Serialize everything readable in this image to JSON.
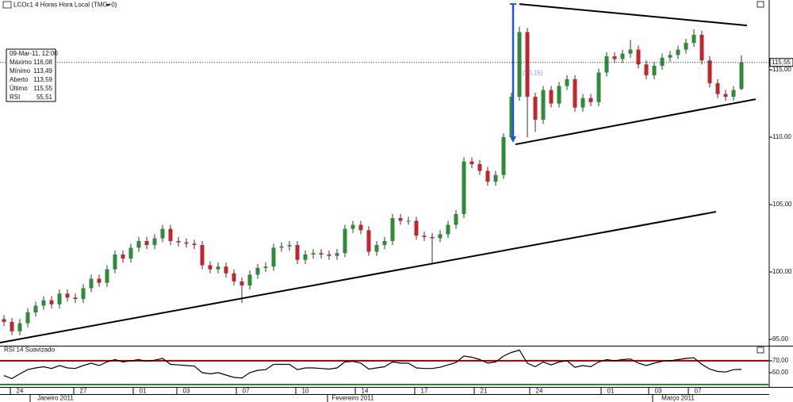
{
  "header": {
    "title": "LCOc1 4 Horas Hora Local (TMG+0)"
  },
  "info_box": {
    "date": "09-Mar-11, 12:00",
    "rows": [
      [
        "Máximo",
        "116,08"
      ],
      [
        "Mínimo",
        "113,49"
      ],
      [
        "Aberto",
        "113,59"
      ],
      [
        "Último",
        "115,55"
      ],
      [
        "RSI",
        "55,51"
      ]
    ]
  },
  "chart_data": [
    {
      "type": "candlestick",
      "up_color": "#2e8b3a",
      "down_color": "#c0262b",
      "open": [
        96.5,
        96.3,
        95.6,
        96.2,
        97.0,
        97.5,
        97.9,
        97.6,
        98.4,
        98.1,
        98.0,
        98.8,
        99.5,
        99.2,
        100.2,
        101.3,
        101.0,
        101.8,
        102.3,
        102.0,
        102.5,
        103.2,
        102.3,
        102.2,
        102.1,
        102.0,
        100.5,
        100.2,
        100.4,
        99.9,
        99.3,
        99.0,
        99.8,
        100.3,
        100.4,
        101.8,
        101.9,
        102.0,
        100.9,
        101.3,
        101.4,
        101.3,
        101.2,
        101.4,
        103.2,
        103.5,
        103.1,
        101.5,
        102.0,
        102.3,
        104.0,
        103.8,
        103.8,
        102.7,
        102.6,
        102.5,
        102.8,
        103.5,
        104.3,
        108.2,
        108.0,
        107.5,
        106.7,
        107.2,
        110.0,
        113.0,
        117.8,
        113.0,
        111.3,
        113.5,
        112.5,
        113.8,
        114.3,
        112.2,
        112.9,
        112.6,
        114.8,
        116.0,
        115.8,
        116.2,
        116.5,
        115.4,
        114.6,
        115.3,
        115.9,
        116.1,
        116.5,
        117.0,
        117.6,
        115.7,
        114.0,
        113.2,
        113.0,
        113.59
      ],
      "high": [
        96.8,
        96.6,
        96.5,
        97.3,
        97.8,
        98.2,
        98.2,
        98.7,
        98.7,
        98.4,
        99.1,
        99.8,
        99.8,
        100.5,
        101.6,
        101.6,
        102.1,
        102.6,
        102.6,
        102.8,
        103.5,
        103.5,
        102.6,
        102.5,
        102.4,
        102.3,
        100.8,
        100.7,
        100.7,
        100.2,
        99.6,
        100.1,
        100.6,
        100.7,
        102.1,
        102.2,
        102.3,
        102.3,
        101.6,
        101.7,
        101.7,
        101.6,
        101.7,
        103.5,
        103.8,
        103.8,
        103.4,
        102.3,
        102.6,
        104.3,
        104.3,
        104.1,
        104.1,
        103.0,
        102.9,
        103.1,
        103.8,
        104.6,
        108.5,
        108.5,
        108.3,
        107.8,
        107.5,
        110.3,
        113.3,
        118.2,
        118.1,
        113.3,
        113.8,
        113.8,
        114.1,
        114.6,
        114.6,
        113.2,
        113.2,
        115.1,
        116.3,
        116.3,
        116.5,
        117.2,
        116.8,
        115.7,
        115.6,
        116.2,
        116.4,
        116.8,
        117.3,
        118.0,
        117.9,
        116.0,
        114.3,
        113.5,
        113.8,
        116.08
      ],
      "low": [
        96.0,
        95.3,
        95.3,
        95.9,
        96.7,
        97.2,
        97.3,
        97.3,
        97.8,
        97.7,
        97.7,
        98.5,
        98.9,
        98.9,
        99.9,
        100.7,
        100.7,
        101.5,
        101.7,
        101.7,
        102.2,
        102.0,
        101.9,
        101.8,
        101.7,
        100.2,
        99.9,
        99.9,
        99.6,
        99.0,
        97.7,
        98.7,
        99.5,
        100.0,
        100.1,
        101.5,
        101.6,
        100.6,
        100.6,
        101.0,
        101.0,
        100.9,
        100.9,
        101.1,
        102.9,
        102.8,
        101.2,
        101.2,
        101.7,
        102.0,
        103.5,
        103.5,
        102.4,
        102.3,
        100.7,
        102.2,
        102.5,
        103.2,
        104.0,
        107.7,
        107.2,
        106.4,
        106.4,
        106.9,
        109.8,
        112.7,
        110.0,
        110.4,
        111.0,
        112.2,
        112.2,
        113.5,
        111.9,
        111.9,
        112.3,
        112.3,
        114.5,
        115.5,
        115.5,
        115.9,
        115.1,
        114.3,
        114.3,
        115.0,
        115.6,
        115.8,
        116.2,
        116.7,
        115.4,
        113.7,
        112.9,
        112.7,
        112.7,
        113.49
      ],
      "close": [
        96.3,
        95.6,
        96.2,
        97.0,
        97.5,
        97.9,
        97.6,
        98.4,
        98.1,
        98.0,
        98.8,
        99.5,
        99.2,
        100.2,
        101.3,
        101.0,
        101.8,
        102.3,
        102.0,
        102.5,
        103.2,
        102.3,
        102.2,
        102.1,
        102.0,
        100.5,
        100.2,
        100.4,
        99.9,
        99.3,
        99.0,
        99.8,
        100.3,
        100.4,
        101.8,
        101.9,
        102.0,
        100.9,
        101.3,
        101.4,
        101.3,
        101.2,
        101.4,
        103.2,
        103.5,
        103.1,
        101.5,
        102.0,
        102.3,
        104.0,
        103.8,
        103.8,
        102.7,
        102.6,
        102.5,
        102.8,
        103.5,
        104.3,
        108.2,
        108.0,
        107.5,
        106.7,
        107.2,
        110.0,
        113.0,
        117.8,
        113.0,
        111.3,
        113.5,
        112.5,
        113.8,
        114.3,
        112.2,
        112.9,
        112.6,
        114.8,
        116.0,
        115.8,
        116.2,
        116.5,
        115.4,
        114.6,
        115.3,
        115.9,
        116.1,
        116.5,
        117.0,
        117.6,
        115.7,
        114.0,
        113.2,
        113.0,
        113.5,
        115.55
      ],
      "xlim": [
        -0.5,
        96.5
      ],
      "ylim": [
        94.59,
        120.18
      ],
      "yticks": [
        {
          "value": 95,
          "label": "95,00"
        },
        {
          "value": 100,
          "label": "100,00"
        },
        {
          "value": 105,
          "label": "105,00"
        },
        {
          "value": 110,
          "label": "110,00"
        },
        {
          "value": 115,
          "label": "115,00"
        }
      ],
      "last_value": {
        "value": 115.55,
        "label": "115,55"
      },
      "trendlines": [
        {
          "x": [
            -0.5,
            89.8
          ],
          "y": [
            94.76,
            104.47
          ],
          "color": "#000000"
        },
        {
          "x": [
            65,
            93.7
          ],
          "y": [
            119.88,
            118.29
          ],
          "color": "#000000"
        },
        {
          "x": [
            64.5,
            94.8
          ],
          "y": [
            109.47,
            112.82
          ],
          "color": "#000000"
        }
      ],
      "arrow": {
        "x": 64.2,
        "y": [
          119.88,
          109.59
        ],
        "color": "#2255dd",
        "label": "(10,15)"
      }
    },
    {
      "type": "line",
      "title": "RSI 14 Suavizado",
      "series": [
        {
          "name": "RSI",
          "color": "#000000",
          "values": [
            45,
            40,
            48,
            55,
            58,
            60,
            57,
            62,
            58,
            57,
            62,
            66,
            62,
            68,
            72,
            68,
            70,
            72,
            69,
            71,
            74,
            64,
            63,
            62,
            61,
            50,
            48,
            50,
            46,
            42,
            41,
            50,
            54,
            55,
            64,
            64,
            64,
            55,
            58,
            58,
            57,
            56,
            58,
            68,
            69,
            66,
            56,
            58,
            60,
            68,
            66,
            66,
            58,
            57,
            57,
            59,
            63,
            67,
            78,
            76,
            72,
            66,
            68,
            78,
            84,
            88,
            66,
            60,
            68,
            63,
            68,
            70,
            59,
            62,
            60,
            68,
            72,
            70,
            72,
            73,
            66,
            62,
            66,
            69,
            70,
            72,
            74,
            75,
            64,
            56,
            52,
            51,
            55,
            55.51
          ]
        }
      ],
      "hlines": [
        {
          "value": 70,
          "color": "#c00000"
        },
        {
          "value": 30,
          "color": "#2a8a2a"
        }
      ],
      "xlim": [
        -0.5,
        96.5
      ],
      "ylim": [
        27.3,
        90
      ],
      "yticks": [
        {
          "value": 70,
          "label": "70,00"
        },
        {
          "value": 50,
          "label": "50,00"
        }
      ],
      "xticks": [
        {
          "value": 2,
          "label": "24"
        },
        {
          "value": 10,
          "label": "27"
        },
        {
          "value": 17.5,
          "label": "01"
        },
        {
          "value": 23,
          "label": "03"
        },
        {
          "value": 30.5,
          "label": "07"
        },
        {
          "value": 38,
          "label": "10"
        },
        {
          "value": 45.5,
          "label": "14"
        },
        {
          "value": 53,
          "label": "17"
        },
        {
          "value": 60.5,
          "label": "21"
        },
        {
          "value": 67.5,
          "label": "24"
        },
        {
          "value": 76.5,
          "label": "01"
        },
        {
          "value": 82.5,
          "label": "03"
        },
        {
          "value": 87.5,
          "label": "07"
        }
      ],
      "month_ticks": [
        {
          "value": 6.5,
          "label": "Janeiro 2011"
        },
        {
          "value": 44,
          "label": "Fevereiro 2011"
        },
        {
          "value": 85,
          "label": "Março 2011"
        }
      ]
    }
  ]
}
